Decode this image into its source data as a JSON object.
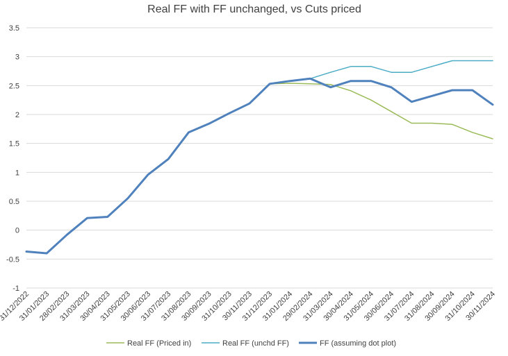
{
  "chart_data": {
    "type": "line",
    "title": "Real FF with FF unchanged, vs Cuts priced",
    "xlabel": "",
    "ylabel": "",
    "ylim": [
      -1,
      3.5
    ],
    "yticks": [
      "3.5",
      "3",
      "2.5",
      "2",
      "1.5",
      "1",
      "0.5",
      "0",
      "-0.5",
      "-1"
    ],
    "grid": "horizontal",
    "legend_position": "bottom",
    "categories": [
      "31/12/2022",
      "31/01/2023",
      "28/02/2023",
      "31/03/2023",
      "30/04/2023",
      "31/05/2023",
      "30/06/2023",
      "31/07/2023",
      "31/08/2023",
      "30/09/2023",
      "31/10/2023",
      "30/11/2023",
      "31/12/2023",
      "31/01/2024",
      "29/02/2024",
      "31/03/2024",
      "30/04/2024",
      "31/05/2024",
      "30/06/2024",
      "31/07/2024",
      "31/08/2024",
      "30/09/2024",
      "31/10/2024",
      "30/11/2024"
    ],
    "series": [
      {
        "name": "Real FF (Priced in)",
        "color": "#9bbb59",
        "width": 1.5,
        "values": [
          null,
          null,
          null,
          null,
          null,
          null,
          null,
          null,
          null,
          null,
          null,
          null,
          2.53,
          2.54,
          2.53,
          2.52,
          2.41,
          2.25,
          2.05,
          1.85,
          1.85,
          1.83,
          1.69,
          1.58
        ]
      },
      {
        "name": "Real FF (unchd FF)",
        "color": "#4bacc6",
        "width": 1.5,
        "values": [
          null,
          null,
          null,
          null,
          null,
          null,
          null,
          null,
          null,
          null,
          null,
          null,
          2.53,
          2.58,
          2.62,
          2.73,
          2.83,
          2.83,
          2.73,
          2.73,
          2.83,
          2.93,
          2.93,
          2.93
        ]
      },
      {
        "name": "FF (assuming dot plot)",
        "color": "#4f81bd",
        "width": 3,
        "values": [
          -0.37,
          -0.4,
          -0.08,
          0.21,
          0.23,
          0.55,
          0.96,
          1.23,
          1.69,
          1.84,
          2.02,
          2.19,
          2.53,
          2.58,
          2.62,
          2.47,
          2.58,
          2.58,
          2.47,
          2.22,
          2.32,
          2.42,
          2.42,
          2.17
        ]
      }
    ]
  }
}
